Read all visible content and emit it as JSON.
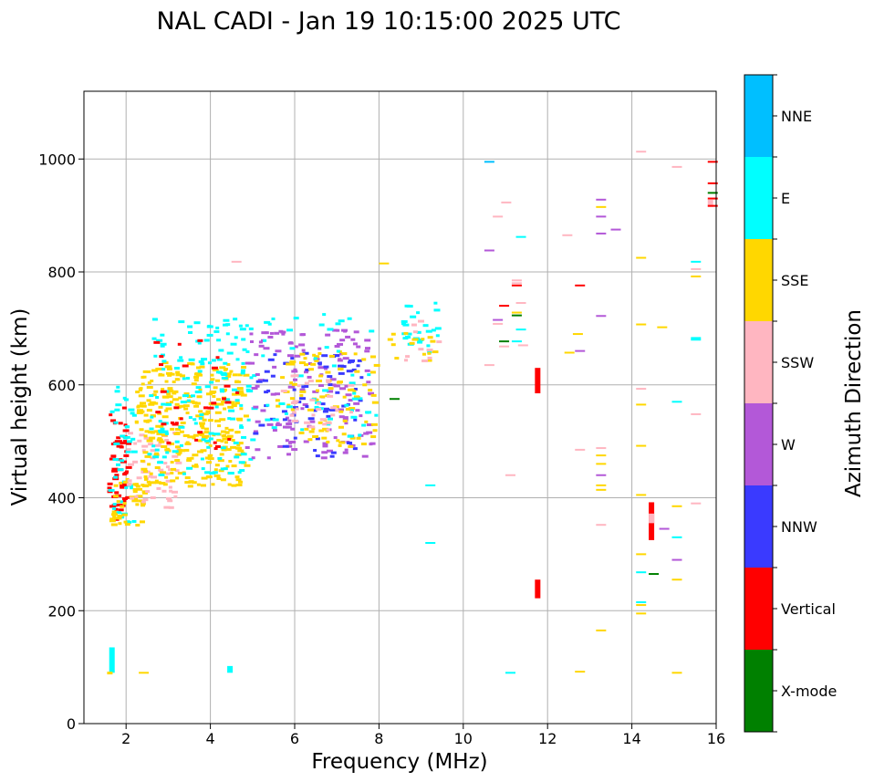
{
  "chart_data": {
    "type": "scatter",
    "title": "NAL CADI - Jan 19 10:15:00 2025 UTC",
    "xlabel": "Frequency (MHz)",
    "ylabel": "Virtual height (km)",
    "xlim": [
      1,
      16
    ],
    "ylim": [
      0,
      1120
    ],
    "xticks": [
      2,
      4,
      6,
      8,
      10,
      12,
      14,
      16
    ],
    "yticks": [
      0,
      200,
      400,
      600,
      800,
      1000
    ],
    "grid": true,
    "colorbar": {
      "title": "Azimuth Direction",
      "categories": [
        {
          "name": "X-mode",
          "color": "#008000"
        },
        {
          "name": "Vertical",
          "color": "#ff0000"
        },
        {
          "name": "NNW",
          "color": "#3a3aff"
        },
        {
          "name": "W",
          "color": "#b358d8"
        },
        {
          "name": "SSW",
          "color": "#ffb6c1"
        },
        {
          "name": "SSE",
          "color": "#ffd700"
        },
        {
          "name": "E",
          "color": "#00ffff"
        },
        {
          "name": "NNE",
          "color": "#00bfff"
        }
      ]
    },
    "clusters": [
      {
        "category": "Vertical",
        "fmin": 1.55,
        "fmax": 2.0,
        "hmin": 360,
        "hmax": 560,
        "count": 55
      },
      {
        "category": "E",
        "fmin": 1.55,
        "fmax": 2.15,
        "hmin": 350,
        "hmax": 600,
        "count": 40
      },
      {
        "category": "SSE",
        "fmin": 1.6,
        "fmax": 2.4,
        "hmin": 350,
        "hmax": 440,
        "count": 40
      },
      {
        "category": "SSW",
        "fmin": 2.0,
        "fmax": 3.2,
        "hmin": 380,
        "hmax": 520,
        "count": 60
      },
      {
        "category": "SSE",
        "fmin": 2.2,
        "fmax": 4.8,
        "hmin": 420,
        "hmax": 640,
        "count": 320
      },
      {
        "category": "E",
        "fmin": 2.5,
        "fmax": 5.0,
        "hmin": 440,
        "hmax": 720,
        "count": 150
      },
      {
        "category": "Vertical",
        "fmin": 2.6,
        "fmax": 4.6,
        "hmin": 480,
        "hmax": 680,
        "count": 30
      },
      {
        "category": "W",
        "fmin": 4.8,
        "fmax": 7.8,
        "hmin": 470,
        "hmax": 700,
        "count": 140
      },
      {
        "category": "NNW",
        "fmin": 5.0,
        "fmax": 7.6,
        "hmin": 470,
        "hmax": 660,
        "count": 70
      },
      {
        "category": "SSE",
        "fmin": 5.5,
        "fmax": 7.9,
        "hmin": 490,
        "hmax": 660,
        "count": 90
      },
      {
        "category": "E",
        "fmin": 5.2,
        "fmax": 7.9,
        "hmin": 500,
        "hmax": 730,
        "count": 50
      },
      {
        "category": "SSW",
        "fmin": 5.6,
        "fmax": 7.5,
        "hmin": 520,
        "hmax": 620,
        "count": 30
      },
      {
        "category": "E",
        "fmin": 8.5,
        "fmax": 9.4,
        "hmin": 650,
        "hmax": 745,
        "count": 25
      },
      {
        "category": "SSE",
        "fmin": 8.2,
        "fmax": 9.3,
        "hmin": 640,
        "hmax": 700,
        "count": 14
      },
      {
        "category": "SSW",
        "fmin": 8.5,
        "fmax": 9.4,
        "hmin": 640,
        "hmax": 720,
        "count": 10
      }
    ],
    "traces": [
      {
        "category": "E",
        "f": 1.6,
        "h": 90,
        "f2": 1.62,
        "h2": 135
      },
      {
        "category": "SSE",
        "f": 1.55,
        "h": 90,
        "f2": 1.65,
        "h2": 92
      },
      {
        "category": "SSE",
        "f": 2.3,
        "h": 90
      },
      {
        "category": "E",
        "f": 4.4,
        "h": 90,
        "f2": 4.45,
        "h2": 102
      },
      {
        "category": "SSW",
        "f": 4.5,
        "h": 818
      },
      {
        "category": "SSE",
        "f": 8.0,
        "h": 815
      },
      {
        "category": "X-mode",
        "f": 8.25,
        "h": 575
      },
      {
        "category": "E",
        "f": 9.1,
        "h": 422
      },
      {
        "category": "E",
        "f": 9.1,
        "h": 320
      },
      {
        "category": "NNE",
        "f": 10.5,
        "h": 995
      },
      {
        "category": "W",
        "f": 10.5,
        "h": 838
      },
      {
        "category": "SSW",
        "f": 10.7,
        "h": 898
      },
      {
        "category": "SSW",
        "f": 10.9,
        "h": 923
      },
      {
        "category": "SSW",
        "f": 10.5,
        "h": 635
      },
      {
        "category": "W",
        "f": 10.7,
        "h": 715
      },
      {
        "category": "SSW",
        "f": 10.7,
        "h": 708
      },
      {
        "category": "Vertical",
        "f": 10.85,
        "h": 740
      },
      {
        "category": "SSW",
        "f": 10.85,
        "h": 668
      },
      {
        "category": "X-mode",
        "f": 10.85,
        "h": 677
      },
      {
        "category": "SSW",
        "f": 11.0,
        "h": 440
      },
      {
        "category": "E",
        "f": 11.0,
        "h": 90
      },
      {
        "category": "SSW",
        "f": 11.15,
        "h": 780
      },
      {
        "category": "SSW",
        "f": 11.15,
        "h": 785
      },
      {
        "category": "Vertical",
        "f": 11.15,
        "h": 776
      },
      {
        "category": "X-mode",
        "f": 11.15,
        "h": 723
      },
      {
        "category": "SSE",
        "f": 11.15,
        "h": 728
      },
      {
        "category": "E",
        "f": 11.25,
        "h": 862
      },
      {
        "category": "SSW",
        "f": 11.25,
        "h": 745
      },
      {
        "category": "E",
        "f": 11.25,
        "h": 698
      },
      {
        "category": "E",
        "f": 11.15,
        "h": 677
      },
      {
        "category": "SSW",
        "f": 11.3,
        "h": 670
      },
      {
        "category": "Vertical",
        "f": 11.7,
        "h": 585,
        "f2": 11.72,
        "h2": 630
      },
      {
        "category": "Vertical",
        "f": 11.7,
        "h": 222,
        "f2": 11.72,
        "h2": 255
      },
      {
        "category": "SSW",
        "f": 12.35,
        "h": 865
      },
      {
        "category": "Vertical",
        "f": 12.65,
        "h": 776
      },
      {
        "category": "SSE",
        "f": 12.6,
        "h": 690
      },
      {
        "category": "SSE",
        "f": 12.4,
        "h": 657
      },
      {
        "category": "W",
        "f": 12.65,
        "h": 660
      },
      {
        "category": "SSW",
        "f": 12.65,
        "h": 485
      },
      {
        "category": "SSE",
        "f": 12.65,
        "h": 92
      },
      {
        "category": "W",
        "f": 13.15,
        "h": 928
      },
      {
        "category": "SSE",
        "f": 13.15,
        "h": 915
      },
      {
        "category": "W",
        "f": 13.15,
        "h": 898
      },
      {
        "category": "W",
        "f": 13.5,
        "h": 875
      },
      {
        "category": "W",
        "f": 13.15,
        "h": 868
      },
      {
        "category": "W",
        "f": 13.15,
        "h": 722
      },
      {
        "category": "SSW",
        "f": 13.15,
        "h": 488
      },
      {
        "category": "SSE",
        "f": 13.15,
        "h": 475
      },
      {
        "category": "SSE",
        "f": 13.15,
        "h": 460
      },
      {
        "category": "W",
        "f": 13.15,
        "h": 440
      },
      {
        "category": "SSE",
        "f": 13.15,
        "h": 422
      },
      {
        "category": "SSE",
        "f": 13.15,
        "h": 414
      },
      {
        "category": "SSW",
        "f": 13.15,
        "h": 352
      },
      {
        "category": "SSE",
        "f": 13.15,
        "h": 165
      },
      {
        "category": "SSW",
        "f": 14.1,
        "h": 1013
      },
      {
        "category": "SSE",
        "f": 14.1,
        "h": 825
      },
      {
        "category": "SSE",
        "f": 14.1,
        "h": 707
      },
      {
        "category": "SSW",
        "f": 14.1,
        "h": 593
      },
      {
        "category": "SSE",
        "f": 14.1,
        "h": 565
      },
      {
        "category": "SSE",
        "f": 14.1,
        "h": 492
      },
      {
        "category": "SSE",
        "f": 14.1,
        "h": 405
      },
      {
        "category": "SSE",
        "f": 14.1,
        "h": 300
      },
      {
        "category": "E",
        "f": 14.1,
        "h": 268
      },
      {
        "category": "E",
        "f": 14.1,
        "h": 215
      },
      {
        "category": "SSE",
        "f": 14.1,
        "h": 210
      },
      {
        "category": "SSE",
        "f": 14.1,
        "h": 195
      },
      {
        "category": "Vertical",
        "f": 14.4,
        "h": 325,
        "f2": 14.42,
        "h2": 392
      },
      {
        "category": "SSW",
        "f": 14.4,
        "h": 355,
        "f2": 14.42,
        "h2": 372
      },
      {
        "category": "X-mode",
        "f": 14.4,
        "h": 265
      },
      {
        "category": "W",
        "f": 14.65,
        "h": 345
      },
      {
        "category": "SSE",
        "f": 14.6,
        "h": 702
      },
      {
        "category": "SSW",
        "f": 14.95,
        "h": 986
      },
      {
        "category": "E",
        "f": 14.95,
        "h": 570
      },
      {
        "category": "SSE",
        "f": 14.95,
        "h": 385
      },
      {
        "category": "E",
        "f": 14.95,
        "h": 330
      },
      {
        "category": "W",
        "f": 14.95,
        "h": 290
      },
      {
        "category": "SSE",
        "f": 14.95,
        "h": 255
      },
      {
        "category": "SSE",
        "f": 14.95,
        "h": 90
      },
      {
        "category": "E",
        "f": 15.4,
        "h": 818
      },
      {
        "category": "SSW",
        "f": 15.4,
        "h": 805
      },
      {
        "category": "SSE",
        "f": 15.4,
        "h": 792
      },
      {
        "category": "E",
        "f": 15.4,
        "h": 680
      },
      {
        "category": "E",
        "f": 15.4,
        "h": 683
      },
      {
        "category": "SSW",
        "f": 15.4,
        "h": 548
      },
      {
        "category": "SSW",
        "f": 15.4,
        "h": 390
      },
      {
        "category": "Vertical",
        "f": 15.8,
        "h": 995
      },
      {
        "category": "Vertical",
        "f": 15.8,
        "h": 957
      },
      {
        "category": "X-mode",
        "f": 15.8,
        "h": 940
      },
      {
        "category": "Vertical",
        "f": 15.8,
        "h": 930
      },
      {
        "category": "SSW",
        "f": 15.8,
        "h": 915,
        "f2": 15.82,
        "h2": 928
      },
      {
        "category": "Vertical",
        "f": 15.8,
        "h": 917
      }
    ]
  }
}
